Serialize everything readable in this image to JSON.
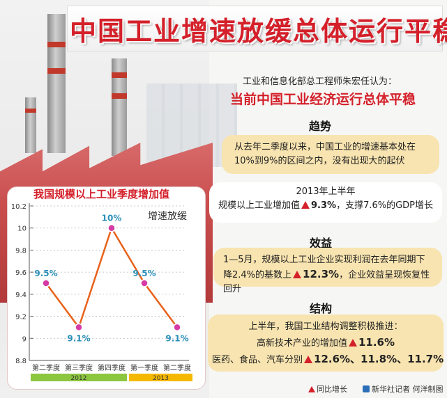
{
  "title": "中国工业增速放缓总体运行平稳",
  "intro_line1": "工业和信息化部总工程师朱宏任认为：",
  "intro_line2": "当前中国工业经济运行总体平稳",
  "sections": {
    "trend": {
      "heading": "趋势",
      "text": "从去年二季度以来，中国工业的增速基本处在10%到9%的区间之内，没有出现大的起伏"
    },
    "h1_2013": {
      "heading": "2013年上半年",
      "text_before": "规模以上工业增加值",
      "value": "9.3%",
      "text_after": "，支撑7.6%的GDP增长"
    },
    "benefit": {
      "heading": "效益",
      "text_before": "1—5月，规模以上工业企业实现利润在去年同期下降2.4%的基数上",
      "value": "12.3%",
      "text_after": "，企业效益呈现恢复性回升"
    },
    "structure": {
      "heading": "结构",
      "line1": "上半年，我国工业结构调整积极推进：",
      "line2_before": "高新技术产业的增加值",
      "line2_value": "11.6%",
      "line3_before": "医药、食品、汽车分别",
      "line3_values": "12.6%、11.8%、11.7%"
    }
  },
  "chart_title": "我国规模以上工业季度增加值",
  "chart_subtitle": "增速放缓",
  "chart_data": {
    "type": "line",
    "categories": [
      "第二季度",
      "第三季度",
      "第四季度",
      "第一季度",
      "第二季度"
    ],
    "values": [
      9.5,
      9.1,
      10.0,
      9.5,
      9.1
    ],
    "data_labels": [
      "9.5%",
      "9.1%",
      "10%",
      "9.5%",
      "9.1%"
    ],
    "year_groups": [
      {
        "label": "2012",
        "span": [
          0,
          2
        ],
        "color": "#8cc63f"
      },
      {
        "label": "2013",
        "span": [
          3,
          4
        ],
        "color": "#f5b800"
      }
    ],
    "ylim": [
      8.8,
      10.2
    ],
    "yticks": [
      "10.2",
      "10",
      "9.8",
      "9.6",
      "9.4",
      "9.2",
      "9",
      "8.8"
    ],
    "line_color": "#e8621a",
    "marker_color": "#d63aa5",
    "label_color": "#2a8fb8"
  },
  "legend": {
    "up_text": "同比增长",
    "source": "新华社记者 何洋制图"
  }
}
